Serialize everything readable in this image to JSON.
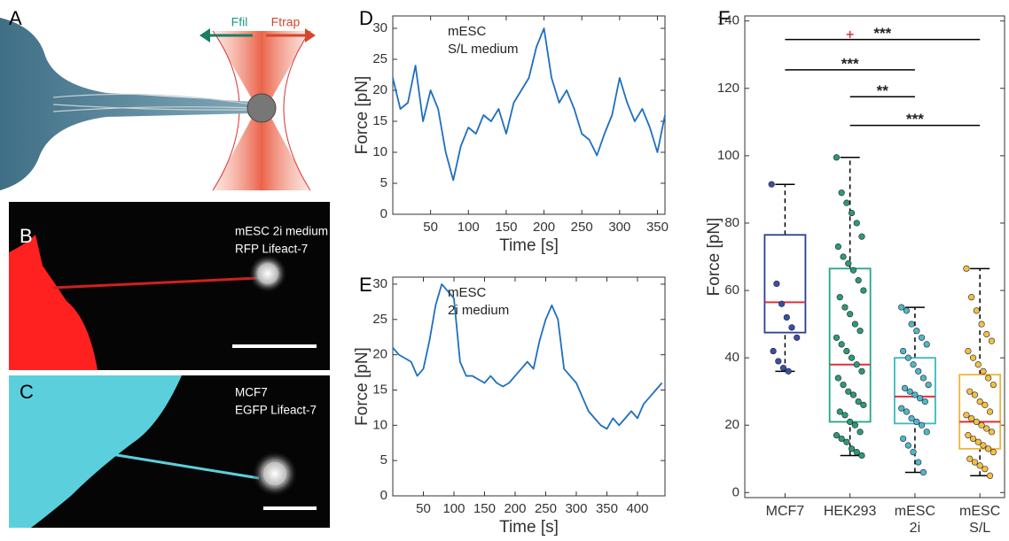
{
  "panel_a": {
    "label": "A",
    "arrows": [
      "Ffil",
      "Ftrap"
    ]
  },
  "panel_b": {
    "label": "B",
    "caption": [
      "mESC 2i medium",
      "RFP Lifeact-7"
    ]
  },
  "panel_c": {
    "label": "C",
    "caption": [
      "MCF7",
      "EGFP Lifeact-7"
    ]
  },
  "chart_data": [
    {
      "type": "line",
      "panel_label": "D",
      "annotation": [
        "mESC",
        "S/L medium"
      ],
      "x_label": "Time [s]",
      "y_label": "Force [pN]",
      "color": "#1f6fbf",
      "x": [
        0,
        10,
        20,
        30,
        40,
        50,
        60,
        70,
        80,
        90,
        100,
        110,
        120,
        130,
        140,
        150,
        160,
        170,
        180,
        190,
        200,
        210,
        220,
        230,
        240,
        250,
        260,
        270,
        280,
        290,
        300,
        310,
        320,
        330,
        340,
        350,
        360
      ],
      "values": [
        22,
        17,
        18,
        24,
        15,
        20,
        17,
        10,
        5.5,
        11,
        14,
        13,
        16,
        15,
        17,
        13,
        18,
        20,
        22,
        27,
        30,
        22,
        18,
        20,
        17,
        13,
        12,
        9.5,
        13,
        16,
        22,
        18,
        15,
        17,
        14,
        10,
        16
      ],
      "xlim": [
        0,
        360
      ],
      "xticks": [
        50,
        100,
        150,
        200,
        250,
        300,
        350
      ],
      "ylim": [
        0,
        32
      ],
      "yticks": [
        0,
        5,
        10,
        15,
        20,
        25,
        30
      ]
    },
    {
      "type": "line",
      "panel_label": "E",
      "annotation": [
        "mESC",
        "2i medium"
      ],
      "x_label": "Time [s]",
      "y_label": "Force [pN]",
      "color": "#1f6fbf",
      "x": [
        0,
        10,
        20,
        30,
        40,
        50,
        60,
        70,
        80,
        90,
        100,
        110,
        120,
        130,
        140,
        150,
        160,
        170,
        180,
        190,
        200,
        210,
        220,
        230,
        240,
        250,
        260,
        270,
        280,
        290,
        300,
        310,
        320,
        330,
        340,
        350,
        360,
        370,
        380,
        390,
        400,
        410,
        420,
        430,
        440
      ],
      "values": [
        21,
        20,
        19.5,
        19,
        17,
        18,
        22,
        27,
        30,
        29,
        28,
        19,
        17,
        17,
        16.5,
        16,
        17,
        16,
        15.5,
        16,
        17,
        18,
        19,
        18,
        22,
        25,
        27,
        25,
        18,
        17,
        16,
        14,
        12,
        11,
        10,
        9.5,
        11,
        10,
        11,
        12,
        11,
        13,
        14,
        15,
        16
      ],
      "xlim": [
        0,
        445
      ],
      "xticks": [
        50,
        100,
        150,
        200,
        250,
        300,
        350,
        400
      ],
      "ylim": [
        0,
        31
      ],
      "yticks": [
        0,
        5,
        10,
        15,
        20,
        25,
        30
      ]
    },
    {
      "type": "box",
      "panel_label": "F",
      "y_label": "Force [pN]",
      "categories": [
        "MCF7",
        "HEK293",
        "mESC 2i",
        "mESC S/L"
      ],
      "ylim": [
        -1.5,
        141.5
      ],
      "yticks": [
        0,
        20,
        40,
        60,
        80,
        100,
        120,
        140
      ],
      "median_color": "#e0303a",
      "boxes": [
        {
          "whislo": 36,
          "q1": 47.5,
          "med": 56.5,
          "q3": 76.5,
          "whishi": 91.5,
          "color": "#2c3e94",
          "point_color": "#3a4fa3",
          "points": [
            91.5,
            62,
            56,
            52,
            49,
            46,
            42,
            39,
            37,
            36
          ]
        },
        {
          "whislo": 11,
          "q1": 21,
          "med": 38,
          "q3": 66.5,
          "whishi": 99.5,
          "color": "#23a589",
          "point_color": "#2e9a73",
          "fliers": [
            136
          ],
          "points": [
            99.5,
            89,
            86,
            83,
            80,
            76,
            73,
            70,
            68,
            66,
            63,
            60,
            58,
            55,
            53,
            50,
            48,
            46,
            44,
            42,
            40,
            38,
            36,
            34,
            32,
            30,
            29,
            27,
            26,
            24,
            23,
            21,
            20,
            18,
            17,
            16,
            15,
            13,
            12,
            11
          ]
        },
        {
          "whislo": 6,
          "q1": 20.5,
          "med": 28.5,
          "q3": 40,
          "whishi": 55,
          "color": "#3cbac4",
          "point_color": "#4fb8c6",
          "points": [
            55,
            54,
            50,
            48,
            46,
            44,
            42,
            40,
            38,
            36,
            34,
            32,
            31,
            30,
            29,
            28,
            27,
            25,
            24,
            22,
            21,
            20,
            18,
            16,
            14,
            12,
            9,
            6
          ]
        },
        {
          "whislo": 5,
          "q1": 13,
          "med": 21,
          "q3": 35,
          "whishi": 66.5,
          "color": "#f0b43c",
          "point_color": "#f5c040",
          "points": [
            66.5,
            58,
            54,
            50,
            47,
            45,
            42,
            40,
            38,
            36,
            34,
            32,
            30,
            29,
            27,
            26,
            24,
            23,
            22,
            21,
            20,
            19,
            18,
            17,
            16,
            15,
            14,
            13,
            12,
            10,
            9,
            8,
            7,
            5
          ]
        }
      ],
      "significance": [
        {
          "label": "***",
          "from": "MCF7",
          "to": "mESC S/L",
          "y": 134.5
        },
        {
          "label": "***",
          "from": "MCF7",
          "to": "mESC 2i",
          "y": 125.5
        },
        {
          "label": "**",
          "from": "HEK293",
          "to": "mESC 2i",
          "y": 117.5
        },
        {
          "label": "***",
          "from": "HEK293",
          "to": "mESC S/L",
          "y": 109
        }
      ]
    }
  ]
}
